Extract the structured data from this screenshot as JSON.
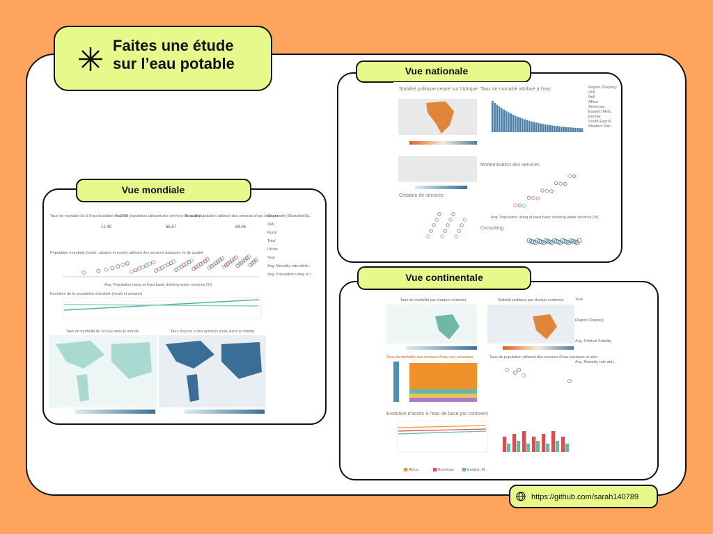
{
  "header": {
    "title_lines": [
      "Faites une étude",
      "sur l’eau potable"
    ]
  },
  "sections": {
    "mondiale": {
      "label": "Vue mondiale",
      "kpis": [
        {
          "title": "Taux de mortalité dû à l'eau insalubre en 2016",
          "value": "12.49"
        },
        {
          "title": "Taux de population utilisant des services de qualité",
          "value": "66.57"
        },
        {
          "title": "Taux de population utilisant des services d'eau basique",
          "value": "88.96"
        }
      ],
      "charts": [
        "Population mondiale (totale, urbaine et rurale) utilisant des services basiques vs de qualité",
        "Evolution de la population mondiale (rurale et urbaine)",
        "Taux de mortalité dû à l'eau dans le monde",
        "Taux d'accès à des services d'eau dans le monde"
      ],
      "x_axis": "Avg. Population using at least basic drinking-water services (%)",
      "filters": [
        "Granularity (BasicAndSa..",
        "(All)",
        "Rural",
        "Total",
        "Urban",
        "Year",
        "Avg. Mortality rate attrib..",
        "Avg. Population using at l.."
      ]
    },
    "nationale": {
      "label": "Vue nationale",
      "charts": [
        "Stabilité politique centré sur l'Afrique",
        "Taux de mortalité attribué à l'eau",
        "Modernisation des services",
        "Création de services",
        "Consulting"
      ],
      "x_axis": "Avg. Population using at least basic drinking-water services (%)",
      "filters": [
        "Region (Display)",
        "(All)",
        "Null",
        "Africa",
        "Americas",
        "Eastern Med..",
        "Europe",
        "South-East A..",
        "Western Pac.."
      ]
    },
    "continentale": {
      "label": "Vue continentale",
      "charts": [
        "Taux de mortalité par chaque continent",
        "Stabilité politique par chaque continent",
        "Taux de mortalité aux services d'eau non sécurisés",
        "Evolution d'accès à l'eau de base par continent",
        "Taux de population utilisant des services d'eau basiques et sûrs"
      ],
      "legend": [
        "Africa",
        "Americas",
        "Eastern M.."
      ],
      "filters": [
        "Year",
        "Region (Display)",
        "Avg. Political Stability",
        "Avg. Mortality rate attri.."
      ]
    }
  },
  "footer": {
    "url": "https://github.com/sarah140789"
  }
}
